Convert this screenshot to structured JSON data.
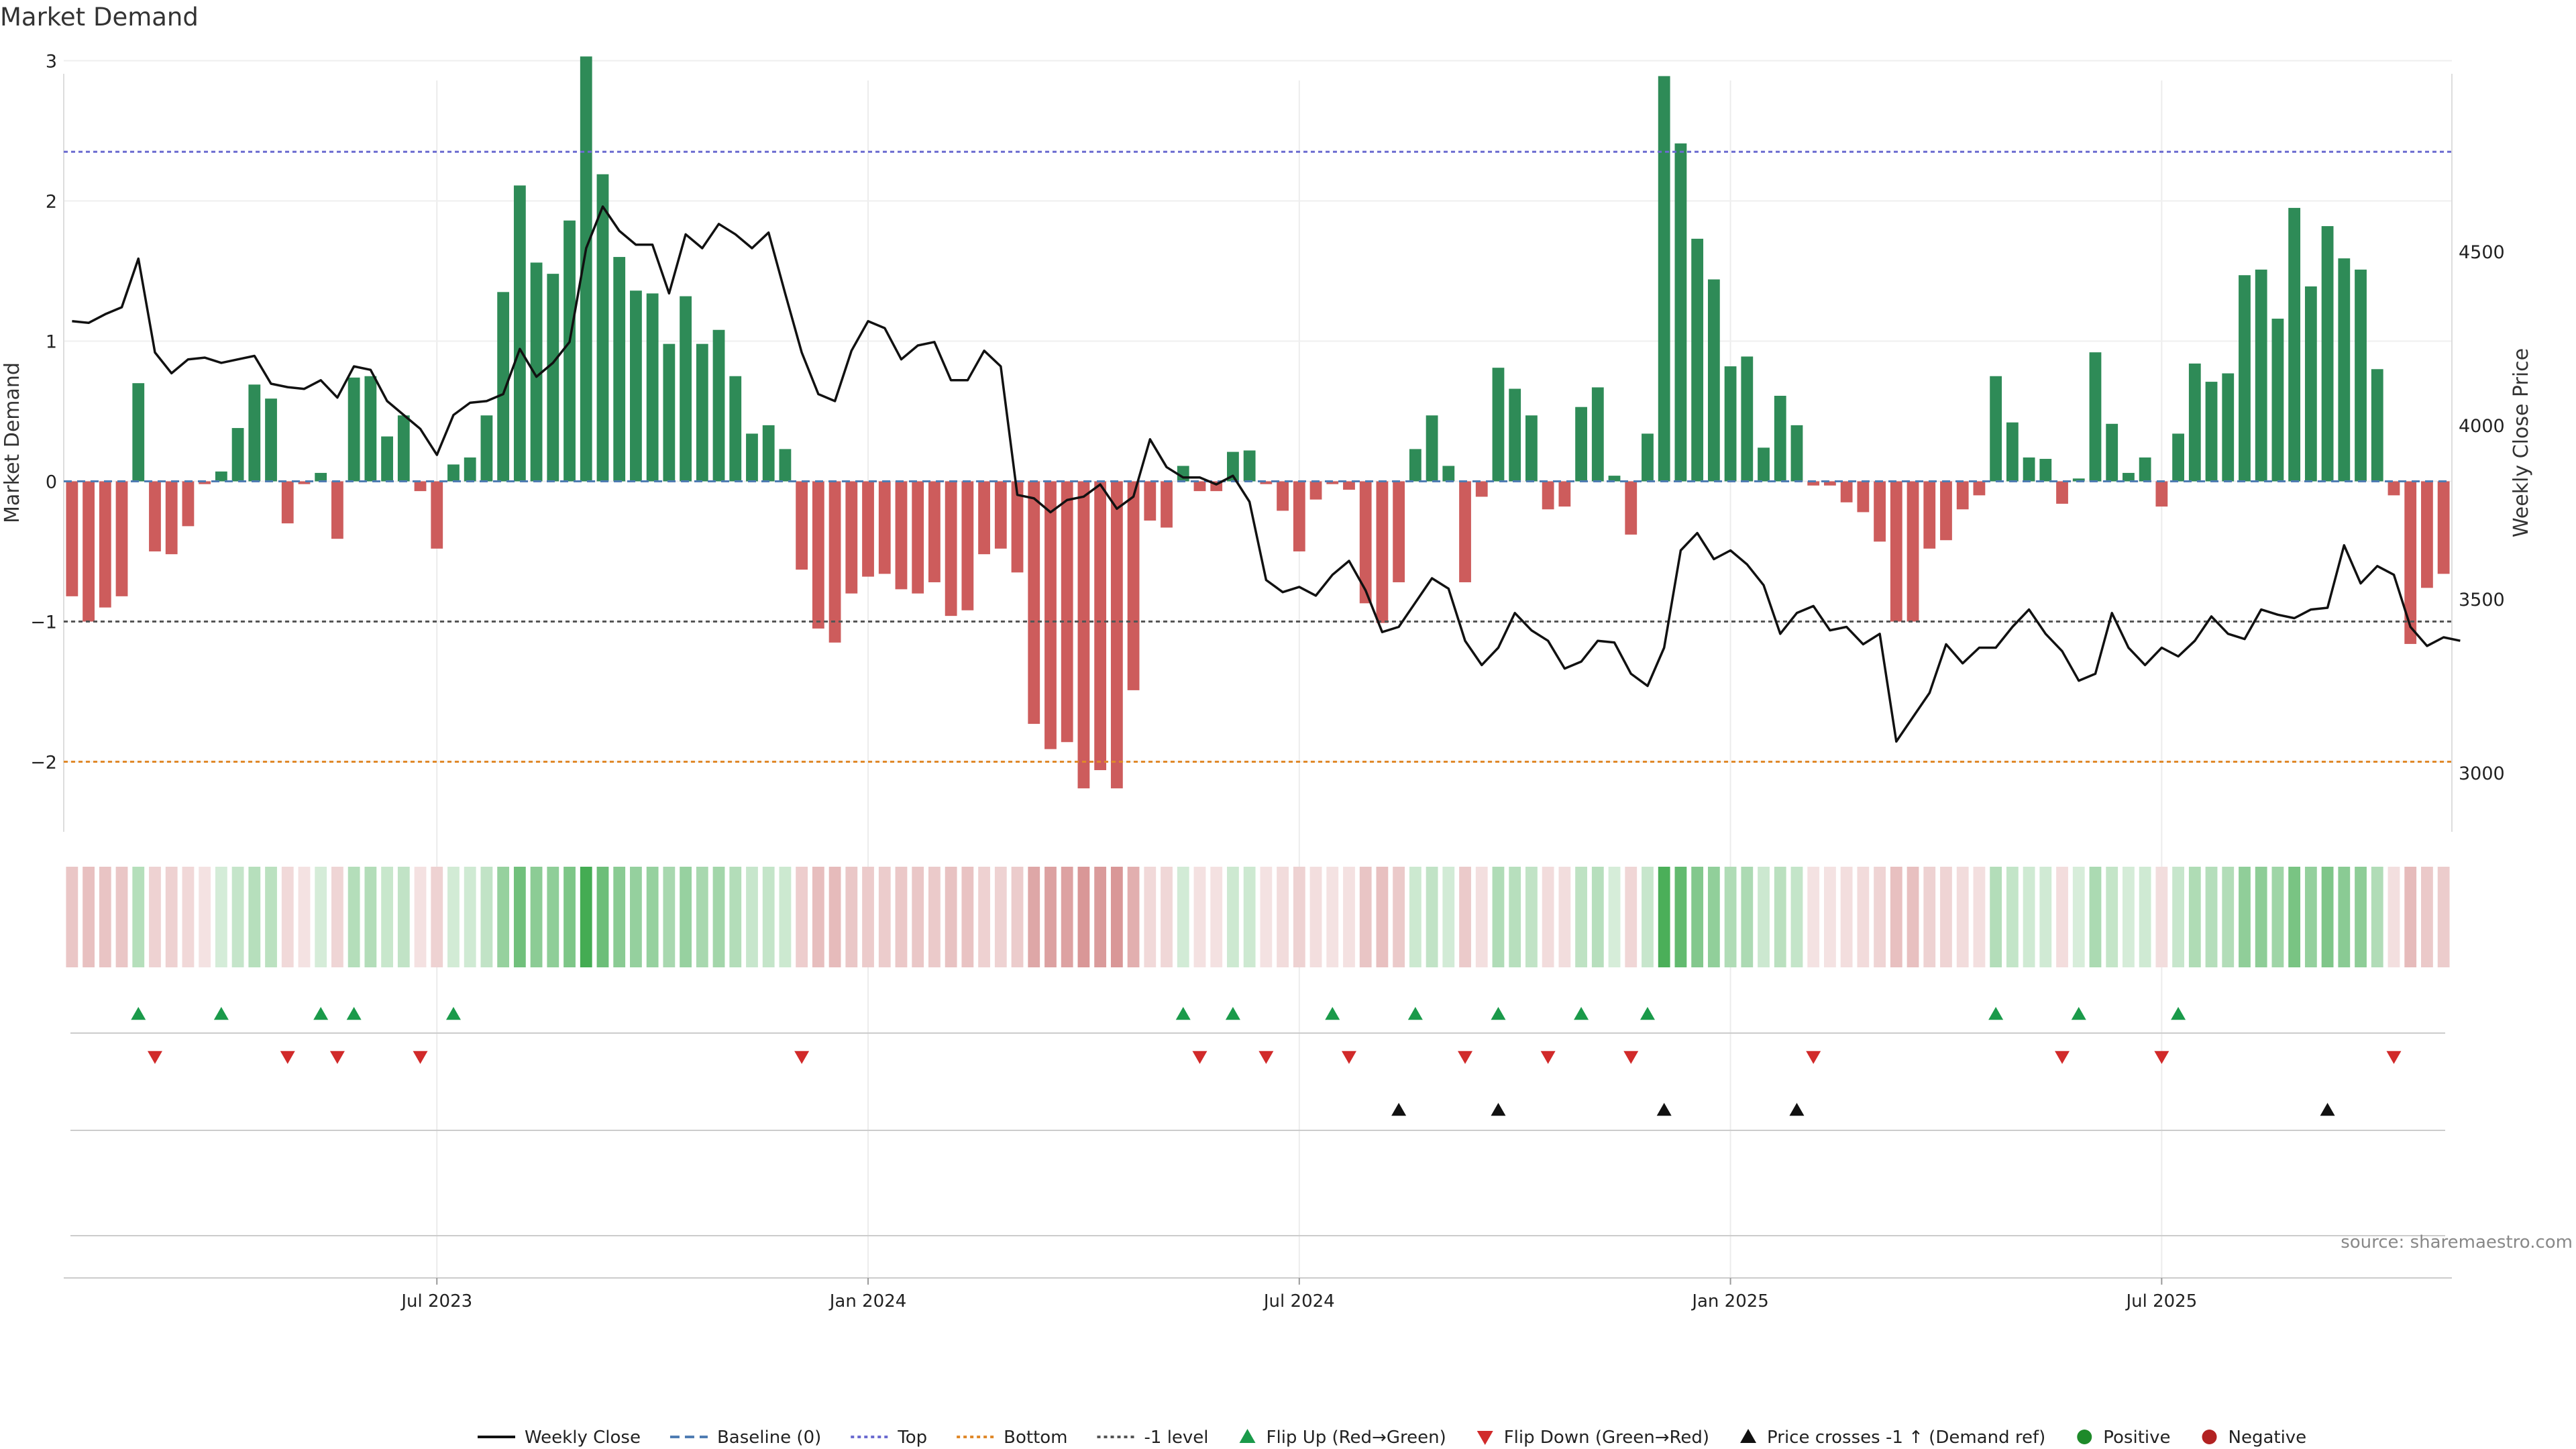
{
  "chart_data": {
    "type": "bar",
    "title": "Market Demand",
    "ylabel_left": "Market Demand",
    "ylabel_right": "Weekly Close Price",
    "source": "source: sharemaestro.com",
    "ylim_left": [
      -2.5,
      3.05
    ],
    "ylim_right": [
      2830,
      5070
    ],
    "yticks_left": [
      -2,
      -1,
      0,
      1,
      2,
      3
    ],
    "yticks_left_labels": [
      "−2",
      "−1",
      "0",
      "1",
      "2",
      "3"
    ],
    "yticks_right": [
      3000,
      3500,
      4000,
      4500
    ],
    "yticks_right_labels": [
      "3000",
      "3500",
      "4000",
      "4500"
    ],
    "xticks": [
      {
        "week": 22,
        "label": "Jul 2023"
      },
      {
        "week": 48,
        "label": "Jan 2024"
      },
      {
        "week": 74,
        "label": "Jul 2024"
      },
      {
        "week": 100,
        "label": "Jan 2025"
      },
      {
        "week": 126,
        "label": "Jul 2025"
      }
    ],
    "reference_lines": {
      "top": 2.35,
      "bottom": -2.0,
      "minus_one": -1.0,
      "baseline": 0
    },
    "demand": [
      -0.82,
      -1.0,
      -0.9,
      -0.82,
      0.7,
      -0.5,
      -0.52,
      -0.32,
      -0.02,
      0.07,
      0.38,
      0.69,
      0.59,
      -0.3,
      -0.02,
      0.06,
      -0.41,
      0.74,
      0.75,
      0.32,
      0.47,
      -0.07,
      -0.48,
      0.12,
      0.17,
      0.47,
      1.35,
      2.11,
      1.56,
      1.48,
      1.86,
      3.03,
      2.19,
      1.6,
      1.36,
      1.34,
      0.98,
      1.32,
      0.98,
      1.08,
      0.75,
      0.34,
      0.4,
      0.23,
      -0.63,
      -1.05,
      -1.15,
      -0.8,
      -0.68,
      -0.66,
      -0.77,
      -0.8,
      -0.72,
      -0.96,
      -0.92,
      -0.52,
      -0.48,
      -0.65,
      -1.73,
      -1.91,
      -1.86,
      -2.19,
      -2.06,
      -2.19,
      -1.49,
      -0.28,
      -0.33,
      0.11,
      -0.07,
      -0.07,
      0.21,
      0.22,
      -0.02,
      -0.21,
      -0.5,
      -0.13,
      -0.02,
      -0.06,
      -0.87,
      -1.01,
      -0.72,
      0.23,
      0.47,
      0.11,
      -0.72,
      -0.11,
      0.81,
      0.66,
      0.47,
      -0.2,
      -0.18,
      0.53,
      0.67,
      0.04,
      -0.38,
      0.34,
      2.89,
      2.41,
      1.73,
      1.44,
      0.82,
      0.89,
      0.24,
      0.61,
      0.4,
      -0.03,
      -0.03,
      -0.15,
      -0.22,
      -0.43,
      -1.0,
      -1.0,
      -0.48,
      -0.42,
      -0.2,
      -0.1,
      0.75,
      0.42,
      0.17,
      0.16,
      -0.16,
      0.02,
      0.92,
      0.41,
      0.06,
      0.17,
      -0.18,
      0.34,
      0.84,
      0.71,
      0.77,
      1.47,
      1.51,
      1.16,
      1.95,
      1.39,
      1.82,
      1.59,
      1.51,
      0.8,
      -0.1,
      -1.16,
      -0.76,
      -0.66
    ],
    "weekly_close": [
      4300,
      4295,
      4320,
      4340,
      4480,
      4210,
      4150,
      4190,
      4195,
      4180,
      4190,
      4200,
      4120,
      4110,
      4105,
      4130,
      4080,
      4170,
      4160,
      4070,
      4030,
      3990,
      3915,
      4030,
      4065,
      4070,
      4090,
      4220,
      4140,
      4180,
      4240,
      4510,
      4630,
      4560,
      4520,
      4520,
      4380,
      4550,
      4510,
      4580,
      4550,
      4510,
      4555,
      4380,
      4210,
      4090,
      4070,
      4215,
      4300,
      4280,
      4190,
      4230,
      4240,
      4130,
      4130,
      4215,
      4170,
      3800,
      3790,
      3750,
      3785,
      3795,
      3830,
      3760,
      3795,
      3960,
      3880,
      3850,
      3850,
      3830,
      3855,
      3780,
      3555,
      3520,
      3535,
      3510,
      3570,
      3610,
      3525,
      3405,
      3420,
      3490,
      3560,
      3530,
      3380,
      3310,
      3360,
      3460,
      3410,
      3380,
      3300,
      3320,
      3380,
      3375,
      3285,
      3250,
      3360,
      3640,
      3690,
      3615,
      3640,
      3600,
      3540,
      3400,
      3460,
      3480,
      3410,
      3420,
      3370,
      3400,
      3090,
      3160,
      3230,
      3370,
      3315,
      3360,
      3360,
      3420,
      3470,
      3400,
      3350,
      3265,
      3285,
      3460,
      3360,
      3310,
      3360,
      3335,
      3380,
      3450,
      3400,
      3385,
      3470,
      3455,
      3445,
      3470,
      3475,
      3655,
      3545,
      3595,
      3570,
      3420,
      3365,
      3390,
      3380
    ],
    "flip_up_weeks": [
      4,
      9,
      15,
      17,
      23,
      67,
      70,
      76,
      81,
      86,
      91,
      95,
      116,
      121,
      127
    ],
    "flip_down_weeks": [
      5,
      13,
      16,
      21,
      44,
      68,
      72,
      77,
      84,
      89,
      94,
      105,
      120,
      126,
      140
    ],
    "price_cross_weeks": [
      80,
      86,
      96,
      104,
      136
    ],
    "legend": [
      {
        "label": "Weekly Close",
        "kind": "line",
        "color": "#111111"
      },
      {
        "label": "Baseline (0)",
        "kind": "dashed",
        "color": "#4f7cb3"
      },
      {
        "label": "Top",
        "kind": "dotted",
        "color": "#6b6bd0"
      },
      {
        "label": "Bottom",
        "kind": "dotted",
        "color": "#e0892a"
      },
      {
        "label": "-1 level",
        "kind": "dotted",
        "color": "#555555"
      },
      {
        "label": "Flip Up (Red→Green)",
        "kind": "tri-up",
        "color": "#1a9a4a"
      },
      {
        "label": "Flip Down (Green→Red)",
        "kind": "tri-down",
        "color": "#d12a2a"
      },
      {
        "label": "Price crosses -1 ↑ (Demand ref)",
        "kind": "tri-up",
        "color": "#111111"
      },
      {
        "label": "Positive",
        "kind": "dot",
        "color": "#1e8a2a"
      },
      {
        "label": "Negative",
        "kind": "dot",
        "color": "#b22222"
      }
    ],
    "colors": {
      "positive_bar": "#2e8b57",
      "negative_bar": "#cd5c5c",
      "top_line": "#6b6bd0",
      "bottom_line": "#e0892a",
      "minus_one_line": "#555555",
      "baseline": "#4f7cb3",
      "flip_up": "#1a9a4a",
      "flip_down": "#d12a2a",
      "price_cross": "#111111"
    }
  }
}
